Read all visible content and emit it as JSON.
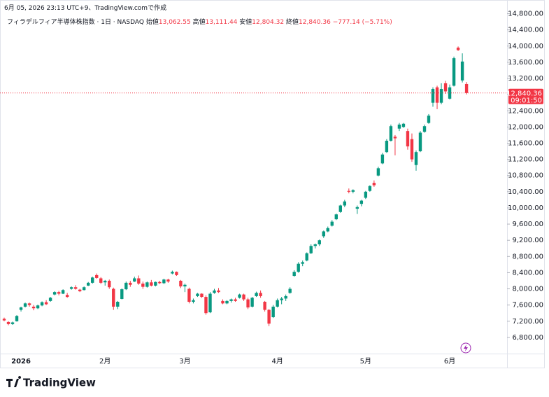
{
  "header": {
    "timestamp": "6月 05, 2026 23:13 UTC+9、TradingView.comで作成",
    "symbol": "フィラデルフィア半導体株指数 · 1日 · NASDAQ",
    "ohlc": [
      {
        "label": "始値",
        "value": "13,062.55"
      },
      {
        "label": "高値",
        "value": "13,111.44"
      },
      {
        "label": "安値",
        "value": "12,804.32"
      },
      {
        "label": "終値",
        "value": "12,840.36"
      }
    ],
    "change": "−777.14 (−5.71%)"
  },
  "brand": "TradingView",
  "chart_data": {
    "type": "candlestick",
    "up_color": "#089981",
    "down_color": "#f23645",
    "price_label": "12,840.36",
    "countdown": "09:01:50",
    "ylim": [
      6400,
      15000
    ],
    "yticks": [
      {
        "value": 6800,
        "label": "6,800.00"
      },
      {
        "value": 7200,
        "label": "7,200.00"
      },
      {
        "value": 7600,
        "label": "7,600.00"
      },
      {
        "value": 8000,
        "label": "8,000.00"
      },
      {
        "value": 8400,
        "label": "8,400.00"
      },
      {
        "value": 8800,
        "label": "8,800.00"
      },
      {
        "value": 9200,
        "label": "9,200.00"
      },
      {
        "value": 9600,
        "label": "9,600.00"
      },
      {
        "value": 10000,
        "label": "10,000.00"
      },
      {
        "value": 10400,
        "label": "10,400.00"
      },
      {
        "value": 10800,
        "label": "10,800.00"
      },
      {
        "value": 11200,
        "label": "11,200.00"
      },
      {
        "value": 11600,
        "label": "11,600.00"
      },
      {
        "value": 12000,
        "label": "12,000.00"
      },
      {
        "value": 12400,
        "label": "12,400.00"
      },
      {
        "value": 12800,
        "label": "12,800.00"
      },
      {
        "value": 13200,
        "label": "13,200.00"
      },
      {
        "value": 13600,
        "label": "13,600.00"
      },
      {
        "value": 14000,
        "label": "14,000.00"
      },
      {
        "value": 14400,
        "label": "14,400.00"
      },
      {
        "value": 14800,
        "label": "14,800.00"
      }
    ],
    "categories": [
      null,
      null,
      null,
      null,
      "2026",
      null,
      null,
      null,
      null,
      null,
      null,
      null,
      null,
      null,
      null,
      null,
      null,
      null,
      null,
      null,
      null,
      null,
      null,
      null,
      "2月",
      null,
      null,
      null,
      null,
      null,
      null,
      null,
      null,
      null,
      null,
      null,
      null,
      null,
      null,
      null,
      null,
      null,
      null,
      "3月",
      null,
      null,
      null,
      null,
      null,
      null,
      null,
      null,
      null,
      null,
      null,
      null,
      null,
      null,
      null,
      null,
      null,
      null,
      null,
      null,
      null,
      "4月",
      null,
      null,
      null,
      null,
      null,
      null,
      null,
      null,
      null,
      null,
      null,
      null,
      null,
      null,
      null,
      null,
      null,
      null,
      null,
      null,
      "5月",
      null,
      null,
      null,
      null,
      null,
      null,
      null,
      null,
      null,
      null,
      null,
      null,
      null,
      null,
      null,
      null,
      null,
      null,
      null,
      "6月",
      null,
      null,
      null,
      null
    ],
    "open": [
      7260,
      7180,
      7130,
      7200,
      7480,
      7560,
      7640,
      7560,
      7520,
      7590,
      7670,
      7700,
      7860,
      7920,
      7880,
      7850,
      8000,
      8040,
      7980,
      7970,
      8080,
      8150,
      8340,
      8260,
      8160,
      8200,
      8000,
      7560,
      7750,
      7990,
      8150,
      8180,
      8260,
      8130,
      8050,
      8160,
      8080,
      8170,
      8140,
      8230,
      8380,
      8420,
      8200,
      8060,
      8000,
      7680,
      7820,
      7880,
      7800,
      7420,
      7900,
      7960,
      7700,
      7640,
      7700,
      7740,
      7780,
      7860,
      7740,
      7560,
      7820,
      7900,
      7680,
      7480,
      7300,
      7560,
      7720,
      7760,
      7900,
      8320,
      8420,
      8620,
      8700,
      8880,
      9060,
      9100,
      9300,
      9420,
      9560,
      9720,
      9900,
      10060,
      10420,
      10400,
      9980,
      10100,
      10250,
      10420,
      10620,
      10800,
      11100,
      11380,
      11660,
      11760,
      11960,
      12000,
      11900,
      11700,
      11060,
      11400,
      11880,
      12100,
      12600,
      12980,
      12600,
      13080,
      12700,
      13020,
      13960,
      13150,
      13062.55
    ],
    "high": [
      7290,
      7200,
      7190,
      7350,
      7560,
      7660,
      7660,
      7600,
      7610,
      7690,
      7720,
      7800,
      7940,
      7950,
      7990,
      7900,
      8060,
      8090,
      8000,
      8060,
      8170,
      8300,
      8380,
      8290,
      8220,
      8230,
      8030,
      7700,
      8010,
      8180,
      8200,
      8300,
      8330,
      8180,
      8180,
      8220,
      8180,
      8200,
      8250,
      8250,
      8450,
      8430,
      8220,
      8130,
      8030,
      7760,
      7900,
      7890,
      7840,
      7920,
      8000,
      8020,
      7740,
      7720,
      7760,
      7780,
      7880,
      7880,
      7780,
      7800,
      7930,
      7960,
      7700,
      7500,
      7600,
      7760,
      7800,
      7860,
      8040,
      8460,
      8660,
      8700,
      8900,
      9100,
      9120,
      9220,
      9440,
      9540,
      9700,
      9860,
      10080,
      10200,
      10480,
      10460,
      10060,
      10200,
      10420,
      10560,
      10680,
      11020,
      11360,
      11700,
      12060,
      11800,
      12100,
      12100,
      11960,
      11840,
      11420,
      11900,
      12060,
      12320,
      12980,
      13020,
      13080,
      13140,
      13050,
      13740,
      13990,
      13820,
      13111.44
    ],
    "low": [
      7200,
      7100,
      7110,
      7190,
      7440,
      7540,
      7560,
      7470,
      7500,
      7570,
      7600,
      7680,
      7840,
      7840,
      7870,
      7780,
      7980,
      7980,
      7920,
      7960,
      8070,
      8130,
      8250,
      8120,
      8080,
      8000,
      7480,
      7500,
      7740,
      7970,
      8050,
      8170,
      8100,
      8000,
      8030,
      8060,
      8060,
      8120,
      8120,
      8150,
      8360,
      8320,
      8020,
      7920,
      7640,
      7640,
      7800,
      7780,
      7360,
      7400,
      7880,
      7900,
      7620,
      7620,
      7660,
      7680,
      7760,
      7700,
      7500,
      7540,
      7800,
      7780,
      7440,
      7080,
      7280,
      7540,
      7620,
      7700,
      7880,
      8300,
      8400,
      8560,
      8680,
      8860,
      9000,
      9060,
      9260,
      9400,
      9540,
      9700,
      9880,
      10020,
      10360,
      10360,
      9850,
      10040,
      10220,
      10400,
      10520,
      10780,
      11080,
      11360,
      11640,
      11300,
      11900,
      11980,
      11440,
      11140,
      10920,
      11380,
      11860,
      12080,
      12500,
      12440,
      12560,
      12820,
      12680,
      13000,
      13880,
      13100,
      12804.32
    ],
    "close": [
      7220,
      7130,
      7170,
      7330,
      7540,
      7640,
      7600,
      7520,
      7590,
      7670,
      7620,
      7780,
      7920,
      7880,
      7970,
      7800,
      8040,
      8000,
      7940,
      8040,
      8150,
      8280,
      8270,
      8150,
      8200,
      8040,
      7560,
      7680,
      7990,
      8150,
      8100,
      8260,
      8130,
      8050,
      8160,
      8080,
      8170,
      8140,
      8230,
      8180,
      8420,
      8340,
      8060,
      8100,
      7680,
      7720,
      7880,
      7800,
      7400,
      7880,
      7960,
      7920,
      7640,
      7700,
      7740,
      7700,
      7860,
      7740,
      7540,
      7780,
      7900,
      7820,
      7480,
      7140,
      7560,
      7720,
      7760,
      7820,
      8000,
      8420,
      8620,
      8660,
      8880,
      9060,
      9100,
      9200,
      9420,
      9500,
      9660,
      9840,
      10060,
      10160,
      10400,
      10440,
      10020,
      10180,
      10400,
      10540,
      10560,
      10980,
      11320,
      11660,
      12020,
      11720,
      12060,
      12080,
      11520,
      11200,
      11380,
      11860,
      12020,
      12280,
      12940,
      12600,
      12940,
      12880,
      12980,
      13700,
      13900,
      13617.5,
      12840.36
    ]
  }
}
